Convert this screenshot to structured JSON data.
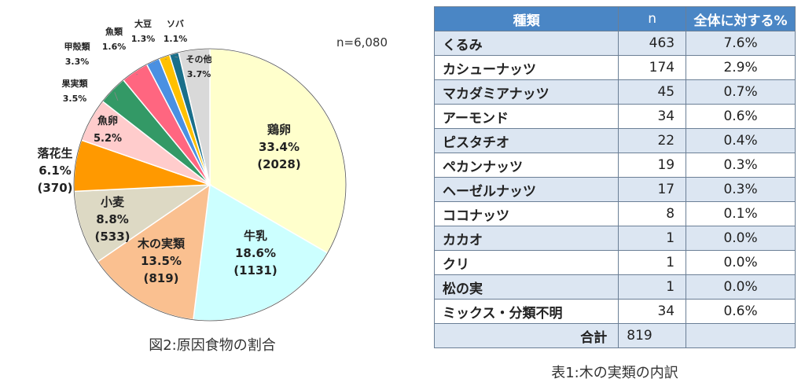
{
  "chart_data": [
    {
      "type": "pie",
      "caption": "図2:原因食物の割合",
      "note": "n=6,080",
      "slices": [
        {
          "name": "鶏卵",
          "percent": 33.4,
          "count": 2028,
          "pct_label": "33.4%",
          "count_label": "(2028)",
          "color": "#ffffcc"
        },
        {
          "name": "牛乳",
          "percent": 18.6,
          "count": 1131,
          "pct_label": "18.6%",
          "count_label": "(1131)",
          "color": "#ccffff"
        },
        {
          "name": "木の実類",
          "percent": 13.5,
          "count": 819,
          "pct_label": "13.5%",
          "count_label": "(819)",
          "color": "#fac090"
        },
        {
          "name": "小麦",
          "percent": 8.8,
          "count": 533,
          "pct_label": "8.8%",
          "count_label": "(533)",
          "color": "#ddd9c4"
        },
        {
          "name": "落花生",
          "percent": 6.1,
          "count": 370,
          "pct_label": "6.1%",
          "count_label": "(370)",
          "color": "#ff9900"
        },
        {
          "name": "魚卵",
          "percent": 5.2,
          "pct_label": "5.2%",
          "color": "#ffcccc"
        },
        {
          "name": "果実類",
          "percent": 3.5,
          "pct_label": "3.5%",
          "color": "#339966"
        },
        {
          "name": "甲殻類",
          "percent": 3.3,
          "pct_label": "3.3%",
          "color": "#ff6680"
        },
        {
          "name": "魚類",
          "percent": 1.6,
          "pct_label": "1.6%",
          "color": "#4a90e2"
        },
        {
          "name": "大豆",
          "percent": 1.3,
          "pct_label": "1.3%",
          "color": "#ffc000"
        },
        {
          "name": "ソバ",
          "percent": 1.1,
          "pct_label": "1.1%",
          "color": "#1a6f8a"
        },
        {
          "name": "その他",
          "percent": 3.7,
          "pct_label": "3.7%",
          "color": "#d9d9d9"
        }
      ]
    },
    {
      "type": "table",
      "caption": "表1:木の実類の内訳",
      "columns": [
        "種類",
        "n",
        "全体に対する%"
      ],
      "rows": [
        [
          "くるみ",
          "463",
          "7.6%"
        ],
        [
          "カシューナッツ",
          "174",
          "2.9%"
        ],
        [
          "マカダミアナッツ",
          "45",
          "0.7%"
        ],
        [
          "アーモンド",
          "34",
          "0.6%"
        ],
        [
          "ピスタチオ",
          "22",
          "0.4%"
        ],
        [
          "ペカンナッツ",
          "19",
          "0.3%"
        ],
        [
          "ヘーゼルナッツ",
          "17",
          "0.3%"
        ],
        [
          "ココナッツ",
          "8",
          "0.1%"
        ],
        [
          "カカオ",
          "1",
          "0.0%"
        ],
        [
          "クリ",
          "1",
          "0.0%"
        ],
        [
          "松の実",
          "1",
          "0.0%"
        ],
        [
          "ミックス・分類不明",
          "34",
          "0.6%"
        ]
      ],
      "total": {
        "label": "合計",
        "value": "819"
      }
    }
  ]
}
